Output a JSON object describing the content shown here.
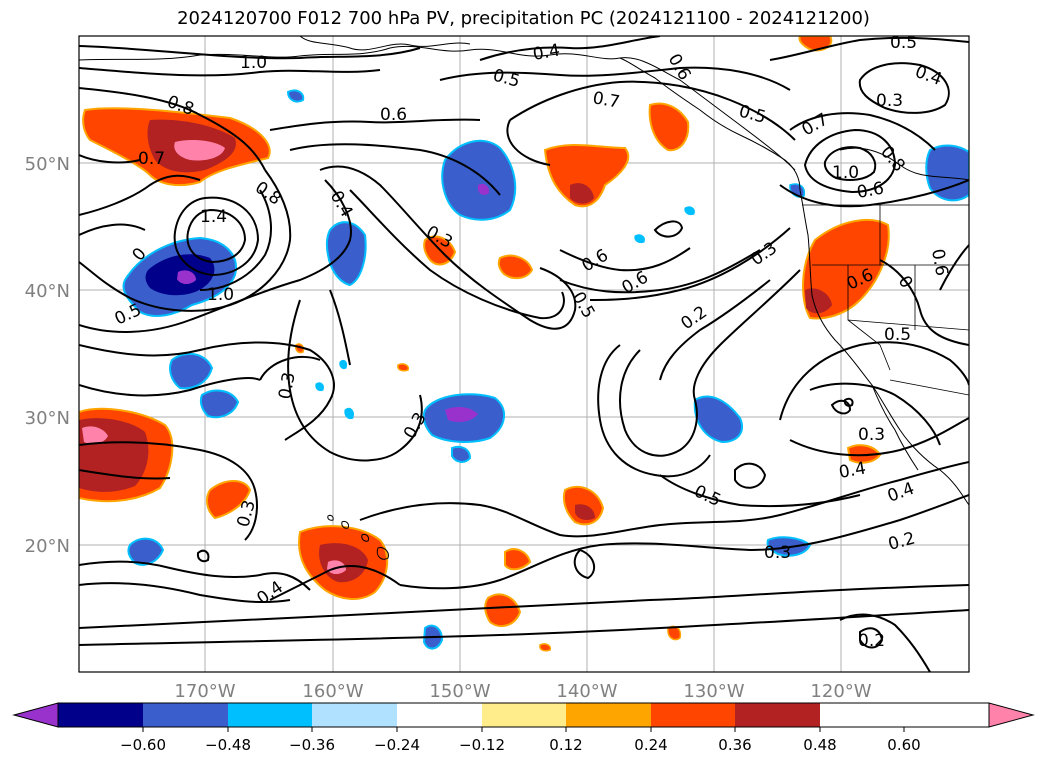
{
  "title": "2024120700 F012 700 hPa PV, precipitation PC (2024121100 - 2024121200)",
  "map": {
    "lat_labels": [
      "50°N",
      "40°N",
      "30°N",
      "20°N"
    ],
    "lon_labels": [
      "170°W",
      "160°W",
      "150°W",
      "140°W",
      "130°W",
      "120°W"
    ],
    "grid": true,
    "label_color": "#808080"
  },
  "contour_labels": [
    {
      "text": "1.0"
    },
    {
      "text": "0.8"
    },
    {
      "text": "0.7"
    },
    {
      "text": "0.8"
    },
    {
      "text": "1.4"
    },
    {
      "text": "0"
    },
    {
      "text": "1.0"
    },
    {
      "text": "0.5"
    },
    {
      "text": "0.6"
    },
    {
      "text": "0.4"
    },
    {
      "text": "0.3"
    },
    {
      "text": "0.3"
    },
    {
      "text": "0.3"
    },
    {
      "text": "0.3"
    },
    {
      "text": "0.4"
    },
    {
      "text": "0.5"
    },
    {
      "text": "0.4"
    },
    {
      "text": "0.6"
    },
    {
      "text": "0.7"
    },
    {
      "text": "0.5"
    },
    {
      "text": "0.5"
    },
    {
      "text": "0.6"
    },
    {
      "text": "0.6"
    },
    {
      "text": "0.2"
    },
    {
      "text": "0.3"
    },
    {
      "text": "0.5"
    },
    {
      "text": "0.3"
    },
    {
      "text": "0.3"
    },
    {
      "text": "0.4"
    },
    {
      "text": "0.4"
    },
    {
      "text": "0.2"
    },
    {
      "text": "0.2"
    },
    {
      "text": "0.5"
    },
    {
      "text": "0.4"
    },
    {
      "text": "0.3"
    },
    {
      "text": "0.7"
    },
    {
      "text": "1.0"
    },
    {
      "text": "0.6"
    },
    {
      "text": "0.8"
    },
    {
      "text": "0.6"
    },
    {
      "text": "0.5"
    },
    {
      "text": "0"
    },
    {
      "text": "0.6"
    }
  ],
  "colorbar": {
    "colors": [
      "#9932cc",
      "#00008b",
      "#3a5fcd",
      "#00bfff",
      "#b0e2ff",
      "#ffffff",
      "#ffec8b",
      "#ffa500",
      "#ff4500",
      "#b22222",
      "#ff82ab"
    ],
    "tick_labels": [
      "−0.60",
      "−0.48",
      "−0.36",
      "−0.24",
      "−0.12",
      "0.12",
      "0.24",
      "0.36",
      "0.48",
      "0.60"
    ]
  }
}
